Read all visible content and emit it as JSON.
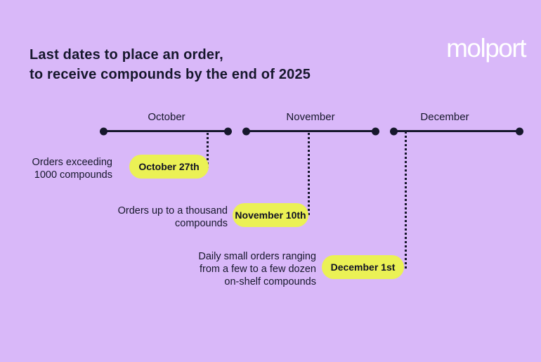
{
  "colors": {
    "background": "#d9b8f9",
    "badge_yellow": "#ebf155",
    "ink": "#16172c",
    "logo_white": "#ffffff"
  },
  "header": {
    "title_line1": "Last dates to place an order,",
    "title_line2": "to receive compounds by the end of 2025",
    "logo_text": "molport"
  },
  "timeline": {
    "months": [
      {
        "label": "October"
      },
      {
        "label": "November"
      },
      {
        "label": "December"
      }
    ]
  },
  "milestones": [
    {
      "lines": [
        "Orders exceeding",
        "1000 compounds"
      ],
      "date": "October 27th"
    },
    {
      "lines": [
        "Orders up to a thousand",
        "compounds"
      ],
      "date": "November 10th"
    },
    {
      "lines": [
        "Daily small orders ranging",
        "from a few to a few dozen",
        "on-shelf compounds"
      ],
      "date": "December 1st"
    }
  ]
}
